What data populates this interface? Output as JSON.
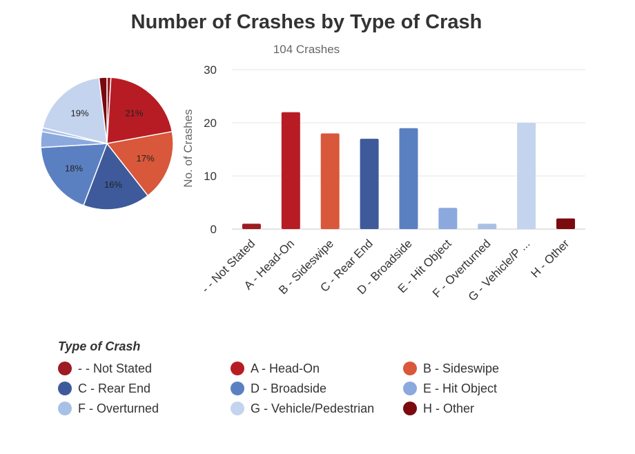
{
  "chart_data": {
    "type": "bar",
    "title": "Number of Crashes by Type of Crash",
    "subtitle": "104 Crashes",
    "ylabel": "No. of Crashes",
    "xlabel": "",
    "ylim": [
      0,
      30
    ],
    "yticks": [
      "0",
      "10",
      "20",
      "30"
    ],
    "categories": [
      "- - Not Stated",
      "A - Head-On",
      "B - Sideswipe",
      "C - Rear End",
      "D - Broadside",
      "E - Hit Object",
      "F - Overturned",
      "G - Vehicle/Pedestrian",
      "H - Other"
    ],
    "tick_labels": [
      "- - Not Stated",
      "A - Head-On",
      "B - Sideswipe",
      "C - Rear End",
      "D - Broadside",
      "E - Hit Object",
      "F - Overturned",
      "G - Vehicle/P ...",
      "H - Other"
    ],
    "values": [
      1,
      22,
      18,
      17,
      19,
      4,
      1,
      20,
      2
    ],
    "colors": [
      "#9e1b23",
      "#b71c25",
      "#d9573a",
      "#3e5a9b",
      "#5b80c2",
      "#8ca9de",
      "#a9c0e6",
      "#c4d4ee",
      "#7a0a0e"
    ],
    "pie": {
      "values": [
        1,
        22,
        18,
        17,
        19,
        4,
        1,
        20,
        2
      ],
      "percent_labels": [
        "",
        "21%",
        "17%",
        "16%",
        "18%",
        "",
        "",
        "19%",
        ""
      ]
    },
    "legend": {
      "title": "Type of Crash",
      "items": [
        "- - Not Stated",
        "A - Head-On",
        "B - Sideswipe",
        "C - Rear End",
        "D - Broadside",
        "E - Hit Object",
        "F - Overturned",
        "G - Vehicle/Pedestrian",
        "H - Other"
      ]
    }
  }
}
